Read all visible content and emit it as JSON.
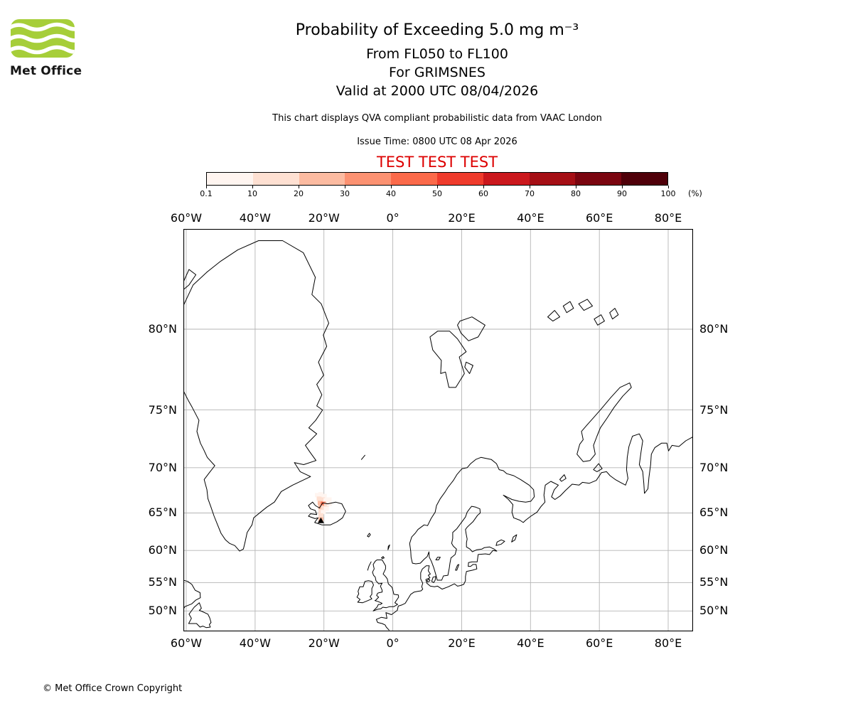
{
  "colors": {
    "test_red": "#dd0000",
    "logo_green": "#a6ce39",
    "grid_gray": "#b5b5b5"
  },
  "logo": {
    "brand": "Met Office"
  },
  "header": {
    "title": "Probability of Exceeding 5.0 mg m⁻³",
    "subtitle_fl": "From FL050 to FL100",
    "subtitle_volcano": "For GRIMSNES",
    "subtitle_valid": "Valid at 2000 UTC 08/04/2026",
    "note": "This chart displays QVA compliant probabilistic data from VAAC London",
    "issue_time": "Issue Time: 0800 UTC 08 Apr 2026",
    "test_banner": "TEST TEST TEST"
  },
  "colorbar": {
    "tick_labels": [
      "0.1",
      "10",
      "20",
      "30",
      "40",
      "50",
      "60",
      "70",
      "80",
      "90",
      "100"
    ],
    "unit": "(%)",
    "colors": [
      "#fff5f0",
      "#fee0d2",
      "#fcbba1",
      "#fc9272",
      "#fb6a4a",
      "#ef3b2c",
      "#cb181d",
      "#a50f15",
      "#7a0510",
      "#4f0009"
    ]
  },
  "map": {
    "lon_ticks": [
      {
        "label": "60°W",
        "lon": -60
      },
      {
        "label": "40°W",
        "lon": -40
      },
      {
        "label": "20°W",
        "lon": -20
      },
      {
        "label": "0°",
        "lon": 0
      },
      {
        "label": "20°E",
        "lon": 20
      },
      {
        "label": "40°E",
        "lon": 40
      },
      {
        "label": "60°E",
        "lon": 60
      },
      {
        "label": "80°E",
        "lon": 80
      }
    ],
    "lat_ticks": [
      {
        "label": "80°N",
        "lat": 80
      },
      {
        "label": "75°N",
        "lat": 75
      },
      {
        "label": "70°N",
        "lat": 70
      },
      {
        "label": "65°N",
        "lat": 65
      },
      {
        "label": "60°N",
        "lat": 60
      },
      {
        "label": "55°N",
        "lat": 55
      },
      {
        "label": "50°N",
        "lat": 50
      }
    ],
    "volcano": {
      "name": "GRIMSNES",
      "lon": -20.9,
      "lat": 64.0
    },
    "ash_cells": [
      {
        "lon": -21.9,
        "lat": 67.1,
        "pct": 5
      },
      {
        "lon": -20.9,
        "lat": 67.2,
        "pct": 5
      },
      {
        "lon": -19.9,
        "lat": 67.0,
        "pct": 5
      },
      {
        "lon": -21.4,
        "lat": 66.7,
        "pct": 15
      },
      {
        "lon": -20.4,
        "lat": 66.6,
        "pct": 15
      },
      {
        "lon": -19.4,
        "lat": 66.5,
        "pct": 5
      },
      {
        "lon": -18.5,
        "lat": 66.6,
        "pct": 5
      },
      {
        "lon": -21.1,
        "lat": 66.2,
        "pct": 25
      },
      {
        "lon": -20.2,
        "lat": 66.1,
        "pct": 45
      },
      {
        "lon": -19.3,
        "lat": 66.0,
        "pct": 15
      },
      {
        "lon": -18.4,
        "lat": 66.1,
        "pct": 5
      },
      {
        "lon": -20.9,
        "lat": 65.7,
        "pct": 25
      },
      {
        "lon": -20.1,
        "lat": 65.6,
        "pct": 15
      },
      {
        "lon": -19.3,
        "lat": 65.5,
        "pct": 5
      },
      {
        "lon": -20.9,
        "lat": 65.2,
        "pct": 15
      },
      {
        "lon": -20.2,
        "lat": 65.1,
        "pct": 5
      },
      {
        "lon": -20.9,
        "lat": 64.7,
        "pct": 15
      },
      {
        "lon": -20.9,
        "lat": 64.2,
        "pct": 25
      }
    ]
  },
  "footer": {
    "copyright": "© Met Office Crown Copyright"
  }
}
